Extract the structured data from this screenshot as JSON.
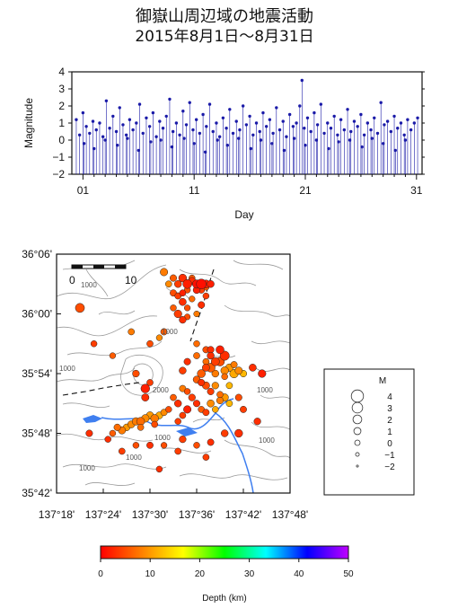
{
  "title": "御嶽山周辺域の地震活動",
  "subtitle": "2015年8月1日～8月31日",
  "chart_data": [
    {
      "type": "scatter",
      "name": "magnitude-time",
      "xlabel": "Day",
      "ylabel": "Magnitude",
      "xlim": [
        0,
        31.5
      ],
      "ylim": [
        -2,
        4
      ],
      "xticks": [
        "01",
        "11",
        "21",
        "31"
      ],
      "xtick_values": [
        1,
        11,
        21,
        31
      ],
      "yticks": [
        "−2",
        "−1",
        "0",
        "1",
        "2",
        "3",
        "4"
      ],
      "ytick_values": [
        -2,
        -1,
        0,
        1,
        2,
        3,
        4
      ],
      "color": "#1a1aa8",
      "note": "values read approximately",
      "points": [
        [
          0.4,
          1.2
        ],
        [
          0.7,
          0.3
        ],
        [
          1.0,
          1.6
        ],
        [
          1.3,
          0.8
        ],
        [
          1.6,
          0.4
        ],
        [
          1.9,
          1.1
        ],
        [
          2.2,
          0.6
        ],
        [
          2.5,
          1.0
        ],
        [
          2.8,
          0.2
        ],
        [
          3.1,
          2.3
        ],
        [
          3.4,
          0.7
        ],
        [
          3.7,
          1.4
        ],
        [
          4.0,
          0.5
        ],
        [
          4.3,
          1.9
        ],
        [
          4.6,
          0.9
        ],
        [
          4.9,
          0.3
        ],
        [
          5.2,
          1.2
        ],
        [
          5.5,
          0.6
        ],
        [
          5.8,
          1.0
        ],
        [
          6.1,
          2.1
        ],
        [
          6.4,
          0.4
        ],
        [
          6.7,
          1.3
        ],
        [
          7.0,
          0.8
        ],
        [
          7.3,
          1.6
        ],
        [
          7.6,
          0.2
        ],
        [
          7.9,
          1.1
        ],
        [
          8.2,
          0.7
        ],
        [
          8.5,
          1.4
        ],
        [
          8.8,
          2.4
        ],
        [
          9.1,
          0.5
        ],
        [
          9.4,
          1.0
        ],
        [
          9.7,
          0.3
        ],
        [
          10.0,
          1.7
        ],
        [
          10.3,
          0.9
        ],
        [
          10.6,
          2.2
        ],
        [
          10.9,
          0.6
        ],
        [
          11.2,
          1.2
        ],
        [
          11.5,
          0.4
        ],
        [
          11.8,
          1.5
        ],
        [
          12.1,
          0.8
        ],
        [
          12.4,
          2.1
        ],
        [
          12.7,
          0.5
        ],
        [
          13.0,
          1.0
        ],
        [
          13.3,
          0.2
        ],
        [
          13.6,
          1.3
        ],
        [
          13.9,
          0.7
        ],
        [
          14.2,
          1.8
        ],
        [
          14.5,
          0.4
        ],
        [
          14.8,
          1.1
        ],
        [
          15.1,
          0.6
        ],
        [
          15.4,
          2.0
        ],
        [
          15.7,
          0.9
        ],
        [
          16.0,
          1.4
        ],
        [
          16.3,
          0.3
        ],
        [
          16.6,
          1.0
        ],
        [
          16.9,
          0.5
        ],
        [
          17.2,
          1.6
        ],
        [
          17.5,
          0.8
        ],
        [
          17.8,
          1.2
        ],
        [
          18.1,
          0.4
        ],
        [
          18.4,
          1.9
        ],
        [
          18.7,
          0.6
        ],
        [
          19.0,
          1.1
        ],
        [
          19.3,
          0.2
        ],
        [
          19.6,
          1.5
        ],
        [
          19.9,
          0.8
        ],
        [
          20.2,
          1.0
        ],
        [
          20.5,
          2.0
        ],
        [
          20.7,
          3.5
        ],
        [
          20.9,
          0.7
        ],
        [
          21.2,
          1.3
        ],
        [
          21.5,
          0.5
        ],
        [
          21.8,
          1.6
        ],
        [
          22.1,
          0.9
        ],
        [
          22.4,
          2.1
        ],
        [
          22.7,
          0.4
        ],
        [
          23.0,
          1.0
        ],
        [
          23.3,
          0.7
        ],
        [
          23.6,
          1.4
        ],
        [
          23.9,
          0.3
        ],
        [
          24.2,
          1.2
        ],
        [
          24.5,
          0.6
        ],
        [
          24.8,
          1.8
        ],
        [
          25.1,
          0.5
        ],
        [
          25.4,
          1.1
        ],
        [
          25.7,
          0.8
        ],
        [
          26.0,
          1.5
        ],
        [
          26.3,
          0.3
        ],
        [
          26.6,
          1.0
        ],
        [
          26.9,
          0.6
        ],
        [
          27.2,
          1.3
        ],
        [
          27.5,
          0.4
        ],
        [
          27.8,
          2.2
        ],
        [
          28.1,
          0.9
        ],
        [
          28.4,
          1.1
        ],
        [
          28.7,
          0.5
        ],
        [
          29.0,
          1.4
        ],
        [
          29.3,
          0.7
        ],
        [
          29.6,
          1.0
        ],
        [
          29.9,
          0.3
        ],
        [
          30.2,
          1.2
        ],
        [
          30.5,
          0.6
        ],
        [
          30.8,
          1.0
        ],
        [
          31.1,
          1.3
        ],
        [
          1.1,
          -0.2
        ],
        [
          2.0,
          -0.5
        ],
        [
          3.0,
          0.0
        ],
        [
          4.1,
          -0.3
        ],
        [
          5.0,
          0.1
        ],
        [
          6.0,
          -0.6
        ],
        [
          7.1,
          -0.1
        ],
        [
          8.0,
          0.0
        ],
        [
          9.0,
          -0.4
        ],
        [
          10.1,
          0.1
        ],
        [
          11.0,
          -0.2
        ],
        [
          12.0,
          -0.7
        ],
        [
          13.1,
          0.0
        ],
        [
          14.0,
          -0.3
        ],
        [
          15.0,
          0.1
        ],
        [
          16.1,
          -0.5
        ],
        [
          17.0,
          0.0
        ],
        [
          18.0,
          -0.2
        ],
        [
          19.1,
          -0.6
        ],
        [
          20.0,
          0.1
        ],
        [
          21.0,
          -0.3
        ],
        [
          22.0,
          0.0
        ],
        [
          23.1,
          -0.5
        ],
        [
          24.0,
          -0.1
        ],
        [
          25.0,
          0.0
        ],
        [
          26.1,
          -0.4
        ],
        [
          27.0,
          0.1
        ],
        [
          28.0,
          -0.2
        ],
        [
          29.1,
          -0.6
        ],
        [
          30.0,
          0.0
        ]
      ]
    },
    {
      "type": "map",
      "name": "epicenter-map",
      "lat_labels": [
        "36°06'",
        "36°00'",
        "35°54'",
        "35°48'",
        "35°42'"
      ],
      "lon_labels": [
        "137°18'",
        "137°24'",
        "137°30'",
        "137°36'",
        "137°42'",
        "137°48'"
      ],
      "lat_values": [
        36.1,
        36.0,
        35.9,
        35.8,
        35.7
      ],
      "lon_values": [
        137.3,
        137.4,
        137.5,
        137.6,
        137.7,
        137.8
      ],
      "lat_range": [
        35.7,
        36.1
      ],
      "lon_range": [
        137.3,
        137.8
      ],
      "scale_bar_labels": [
        "0",
        "10"
      ],
      "contour_labels": [
        "1000",
        "1000",
        "1000",
        "2000",
        "1000",
        "1000",
        "1000",
        "1000",
        "1000"
      ],
      "note": "epicenter values read approximately",
      "events": [
        [
          137.35,
          36.01,
          2.2,
          5
        ],
        [
          137.53,
          36.07,
          1.3,
          8
        ],
        [
          137.55,
          36.06,
          0.8,
          6
        ],
        [
          137.56,
          36.05,
          1.0,
          4
        ],
        [
          137.57,
          36.06,
          1.5,
          3
        ],
        [
          137.58,
          36.05,
          2.1,
          2
        ],
        [
          137.58,
          36.04,
          0.5,
          5
        ],
        [
          137.59,
          36.055,
          1.2,
          3
        ],
        [
          137.6,
          36.05,
          1.8,
          1
        ],
        [
          137.6,
          36.04,
          1.0,
          2
        ],
        [
          137.61,
          36.05,
          2.7,
          1
        ],
        [
          137.61,
          36.04,
          0.7,
          4
        ],
        [
          137.62,
          36.05,
          1.6,
          2
        ],
        [
          137.62,
          36.045,
          0.6,
          6
        ],
        [
          137.63,
          36.05,
          1.0,
          2
        ],
        [
          137.56,
          36.03,
          0.6,
          4
        ],
        [
          137.57,
          36.02,
          1.1,
          3
        ],
        [
          137.58,
          36.01,
          0.4,
          5
        ],
        [
          137.56,
          36.0,
          1.4,
          4
        ],
        [
          137.57,
          35.99,
          0.9,
          3
        ],
        [
          137.55,
          36.01,
          0.5,
          6
        ],
        [
          137.58,
          35.995,
          0.3,
          5
        ],
        [
          137.57,
          36.035,
          0.6,
          2
        ],
        [
          137.59,
          36.025,
          0.4,
          7
        ],
        [
          137.54,
          36.05,
          0.6,
          9
        ],
        [
          137.61,
          36.015,
          0.8,
          3
        ],
        [
          137.62,
          36.03,
          0.5,
          4
        ],
        [
          137.6,
          36.0,
          0.3,
          8
        ],
        [
          137.55,
          36.035,
          0.7,
          5
        ],
        [
          137.59,
          36.06,
          0.5,
          6
        ],
        [
          137.46,
          35.97,
          0.6,
          8
        ],
        [
          137.38,
          35.95,
          0.5,
          4
        ],
        [
          137.42,
          35.93,
          0.4,
          6
        ],
        [
          137.5,
          35.95,
          0.6,
          5
        ],
        [
          137.52,
          35.96,
          0.4,
          9
        ],
        [
          137.47,
          35.9,
          0.9,
          5
        ],
        [
          137.49,
          35.875,
          2.0,
          2
        ],
        [
          137.49,
          35.86,
          1.2,
          3
        ],
        [
          137.5,
          35.885,
          0.6,
          4
        ],
        [
          137.53,
          35.97,
          0.7,
          6
        ],
        [
          137.6,
          35.95,
          0.5,
          7
        ],
        [
          137.63,
          35.94,
          0.8,
          3
        ],
        [
          137.65,
          35.94,
          1.6,
          2
        ],
        [
          137.66,
          35.93,
          2.3,
          3
        ],
        [
          137.64,
          35.92,
          1.7,
          4
        ],
        [
          137.65,
          35.92,
          2.0,
          5
        ],
        [
          137.63,
          35.91,
          2.1,
          6
        ],
        [
          137.66,
          35.905,
          1.4,
          9
        ],
        [
          137.64,
          35.9,
          1.0,
          8
        ],
        [
          137.62,
          35.91,
          1.2,
          4
        ],
        [
          137.61,
          35.9,
          1.6,
          6
        ],
        [
          137.62,
          35.92,
          0.6,
          7
        ],
        [
          137.67,
          35.91,
          1.3,
          10
        ],
        [
          137.68,
          35.9,
          1.9,
          11
        ],
        [
          137.69,
          35.905,
          1.2,
          9
        ],
        [
          137.7,
          35.9,
          0.8,
          12
        ],
        [
          137.68,
          35.915,
          0.7,
          8
        ],
        [
          137.66,
          35.895,
          0.5,
          7
        ],
        [
          137.61,
          35.885,
          0.8,
          3
        ],
        [
          137.6,
          35.89,
          1.0,
          6
        ],
        [
          137.62,
          35.88,
          1.2,
          5
        ],
        [
          137.64,
          35.88,
          0.9,
          9
        ],
        [
          137.67,
          35.88,
          0.6,
          12
        ],
        [
          137.72,
          35.91,
          1.1,
          3
        ],
        [
          137.74,
          35.9,
          1.4,
          2
        ],
        [
          137.63,
          35.87,
          0.8,
          4
        ],
        [
          137.65,
          35.865,
          0.6,
          7
        ],
        [
          137.58,
          35.87,
          0.5,
          5
        ],
        [
          137.57,
          35.875,
          0.7,
          8
        ],
        [
          137.59,
          35.86,
          0.9,
          4
        ],
        [
          137.55,
          35.86,
          0.6,
          6
        ],
        [
          137.56,
          35.85,
          1.0,
          3
        ],
        [
          137.54,
          35.84,
          0.5,
          5
        ],
        [
          137.58,
          35.84,
          1.3,
          2
        ],
        [
          137.6,
          35.85,
          0.8,
          3
        ],
        [
          137.61,
          35.84,
          0.6,
          6
        ],
        [
          137.62,
          35.835,
          0.7,
          4
        ],
        [
          137.63,
          35.85,
          1.1,
          9
        ],
        [
          137.65,
          35.855,
          0.9,
          8
        ],
        [
          137.66,
          35.86,
          1.3,
          10
        ],
        [
          137.67,
          35.85,
          0.6,
          12
        ],
        [
          137.69,
          35.86,
          0.8,
          5
        ],
        [
          137.7,
          35.84,
          0.7,
          4
        ],
        [
          137.64,
          35.84,
          0.5,
          11
        ],
        [
          137.57,
          35.83,
          0.6,
          4
        ],
        [
          137.47,
          35.82,
          1.3,
          8
        ],
        [
          137.48,
          35.82,
          1.6,
          7
        ],
        [
          137.49,
          35.825,
          1.4,
          9
        ],
        [
          137.5,
          35.83,
          1.2,
          10
        ],
        [
          137.51,
          35.825,
          1.5,
          8
        ],
        [
          137.52,
          35.83,
          1.0,
          11
        ],
        [
          137.46,
          35.815,
          1.1,
          9
        ],
        [
          137.45,
          35.81,
          0.9,
          10
        ],
        [
          137.44,
          35.805,
          1.2,
          8
        ],
        [
          137.43,
          35.81,
          0.8,
          7
        ],
        [
          137.53,
          35.835,
          0.7,
          9
        ],
        [
          137.48,
          35.81,
          0.6,
          7
        ],
        [
          137.51,
          35.815,
          0.6,
          5
        ],
        [
          137.42,
          35.8,
          0.5,
          6
        ],
        [
          137.56,
          35.82,
          0.5,
          4
        ],
        [
          137.37,
          35.8,
          0.8,
          3
        ],
        [
          137.41,
          35.79,
          0.5,
          3
        ],
        [
          137.44,
          35.77,
          0.6,
          4
        ],
        [
          137.47,
          35.78,
          0.5,
          5
        ],
        [
          137.5,
          35.78,
          0.7,
          3
        ],
        [
          137.53,
          35.78,
          0.4,
          5
        ],
        [
          137.57,
          35.79,
          0.9,
          4
        ],
        [
          137.6,
          35.78,
          0.5,
          5
        ],
        [
          137.63,
          35.785,
          0.7,
          3
        ],
        [
          137.66,
          35.8,
          1.0,
          4
        ],
        [
          137.69,
          35.8,
          1.5,
          3
        ],
        [
          137.73,
          35.82,
          0.9,
          3
        ],
        [
          137.62,
          35.76,
          0.6,
          4
        ],
        [
          137.52,
          35.74,
          0.5,
          3
        ],
        [
          137.56,
          35.77,
          0.6,
          4
        ],
        [
          137.63,
          35.93,
          1.0,
          3
        ],
        [
          137.62,
          35.94,
          0.7,
          5
        ],
        [
          137.6,
          35.93,
          0.6,
          7
        ],
        [
          137.58,
          35.92,
          0.8,
          3
        ],
        [
          137.57,
          35.905,
          1.0,
          4
        ]
      ]
    },
    {
      "type": "legend",
      "name": "magnitude-scale",
      "title": "M",
      "labels": [
        "4",
        "3",
        "2",
        "1",
        "0",
        "−1",
        "−2"
      ],
      "values": [
        4,
        3,
        2,
        1,
        0,
        -1,
        -2
      ]
    },
    {
      "type": "colorbar",
      "name": "depth-scale",
      "label": "Depth (km)",
      "range": [
        0,
        50
      ],
      "ticks": [
        "0",
        "10",
        "20",
        "30",
        "40",
        "50"
      ],
      "tick_values": [
        0,
        10,
        20,
        30,
        40,
        50
      ],
      "colors": [
        "#ff0000",
        "#ff8000",
        "#ffff00",
        "#00ff00",
        "#00ffff",
        "#0000ff",
        "#c000ff"
      ]
    }
  ]
}
